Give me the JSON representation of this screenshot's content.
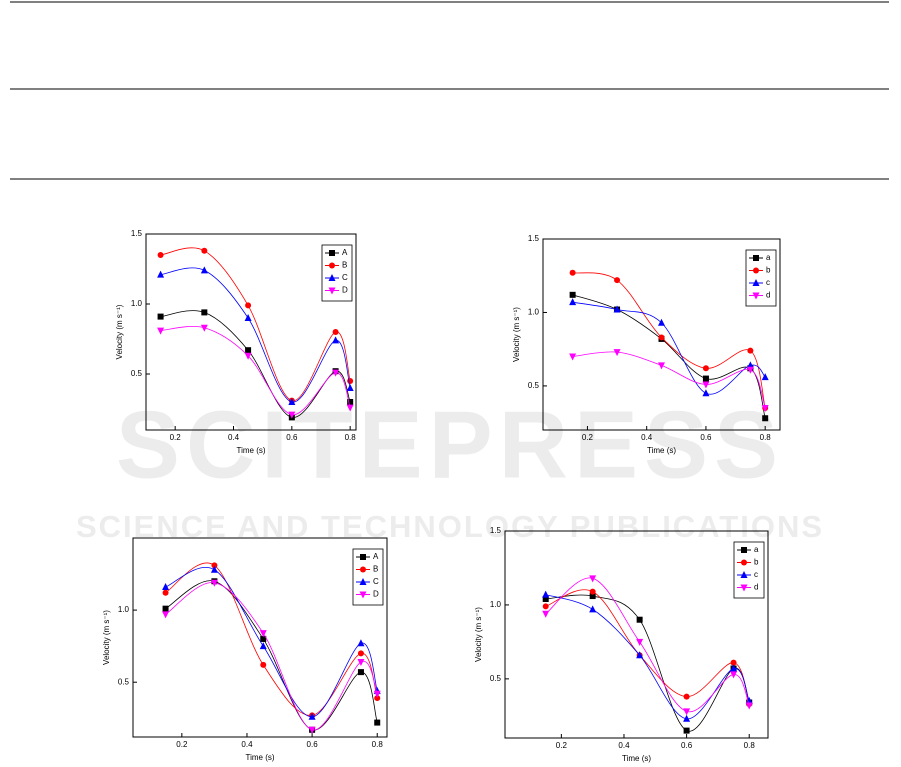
{
  "watermark": {
    "title": "SCITEPRESS",
    "subtitle": "SCIENCE AND TECHNOLOGY PUBLICATIONS"
  },
  "chart_data": [
    {
      "type": "line",
      "x_label": "Time (s)",
      "y_label": "Velocity (m s⁻¹)",
      "x": [
        0.15,
        0.3,
        0.45,
        0.6,
        0.75,
        0.8
      ],
      "xlim": [
        0.1,
        0.82
      ],
      "xticks": [
        0.2,
        0.4,
        0.6,
        0.8
      ],
      "ylim": [
        0.1,
        1.5
      ],
      "yticks": [
        0.5,
        {
          "value": 1,
          "label": "1.0"
        },
        1.5
      ],
      "legend": "upper right",
      "series": [
        {
          "name": "A",
          "color": "#000000",
          "marker": "square",
          "values": [
            0.91,
            0.94,
            0.67,
            0.19,
            0.52,
            0.3
          ]
        },
        {
          "name": "B",
          "color": "#ff0000",
          "marker": "circle",
          "values": [
            1.35,
            1.38,
            0.99,
            0.31,
            0.8,
            0.45
          ]
        },
        {
          "name": "C",
          "color": "#0000ff",
          "marker": "triangle-up",
          "values": [
            1.21,
            1.24,
            0.9,
            0.3,
            0.74,
            0.4
          ]
        },
        {
          "name": "D",
          "color": "#ff00ff",
          "marker": "triangle-down",
          "values": [
            0.81,
            0.83,
            0.63,
            0.21,
            0.51,
            0.26
          ]
        }
      ]
    },
    {
      "type": "line",
      "x_label": "Time (s)",
      "y_label": "Velocity (m s⁻¹)",
      "x": [
        0.15,
        0.3,
        0.45,
        0.6,
        0.75,
        0.8
      ],
      "xlim": [
        0.05,
        0.85
      ],
      "xticks": [
        0.2,
        0.4,
        0.6,
        0.8
      ],
      "ylim": [
        0.2,
        1.5
      ],
      "yticks": [
        0.5,
        {
          "value": 1,
          "label": "1.0"
        },
        1.5
      ],
      "legend": "upper right",
      "series": [
        {
          "name": "a",
          "color": "#000000",
          "marker": "square",
          "values": [
            1.12,
            1.02,
            0.82,
            0.55,
            0.62,
            0.28
          ]
        },
        {
          "name": "b",
          "color": "#ff0000",
          "marker": "circle",
          "values": [
            1.27,
            1.22,
            0.83,
            0.62,
            0.74,
            0.35
          ]
        },
        {
          "name": "c",
          "color": "#0000ff",
          "marker": "triangle-up",
          "values": [
            1.07,
            1.02,
            0.93,
            0.45,
            0.64,
            0.56
          ]
        },
        {
          "name": "d",
          "color": "#ff00ff",
          "marker": "triangle-down",
          "values": [
            0.7,
            0.73,
            0.64,
            0.51,
            0.61,
            0.35
          ]
        }
      ]
    },
    {
      "type": "line",
      "x_label": "Time (s)",
      "y_label": "Velocity (m s⁻¹)",
      "x": [
        0.15,
        0.3,
        0.45,
        0.6,
        0.75,
        0.8
      ],
      "xlim": [
        0.05,
        0.83
      ],
      "xticks": [
        0.2,
        0.4,
        0.6,
        0.8
      ],
      "ylim": [
        0.12,
        1.5
      ],
      "yticks": [
        0.5,
        {
          "value": 1,
          "label": "1.0"
        }
      ],
      "legend": "upper right",
      "series": [
        {
          "name": "A",
          "color": "#000000",
          "marker": "square",
          "values": [
            1.01,
            1.2,
            0.8,
            0.17,
            0.57,
            0.22
          ]
        },
        {
          "name": "B",
          "color": "#ff0000",
          "marker": "circle",
          "values": [
            1.12,
            1.31,
            0.62,
            0.27,
            0.7,
            0.39
          ]
        },
        {
          "name": "C",
          "color": "#0000ff",
          "marker": "triangle-up",
          "values": [
            1.16,
            1.28,
            0.75,
            0.26,
            0.77,
            0.44
          ]
        },
        {
          "name": "D",
          "color": "#ff00ff",
          "marker": "triangle-down",
          "values": [
            0.97,
            1.19,
            0.84,
            0.17,
            0.64,
            0.42
          ]
        }
      ]
    },
    {
      "type": "line",
      "x_label": "Time (s)",
      "y_label": "Velocity (m s⁻¹)",
      "x": [
        0.15,
        0.3,
        0.45,
        0.6,
        0.75,
        0.8
      ],
      "xlim": [
        0.02,
        0.86
      ],
      "xticks": [
        0.2,
        0.4,
        0.6,
        0.8
      ],
      "ylim": [
        0.1,
        1.5
      ],
      "yticks": [
        0.5,
        {
          "value": 1,
          "label": "1.0"
        },
        1.5
      ],
      "legend": "upper right",
      "series": [
        {
          "name": "a",
          "color": "#000000",
          "marker": "square",
          "values": [
            1.04,
            1.06,
            0.9,
            0.15,
            0.57,
            0.34
          ]
        },
        {
          "name": "b",
          "color": "#ff0000",
          "marker": "circle",
          "values": [
            0.99,
            1.09,
            0.66,
            0.38,
            0.61,
            0.33
          ]
        },
        {
          "name": "c",
          "color": "#0000ff",
          "marker": "triangle-up",
          "values": [
            1.07,
            0.97,
            0.66,
            0.23,
            0.57,
            0.35
          ]
        },
        {
          "name": "d",
          "color": "#ff00ff",
          "marker": "triangle-down",
          "values": [
            0.94,
            1.18,
            0.75,
            0.28,
            0.53,
            0.32
          ]
        }
      ]
    }
  ]
}
